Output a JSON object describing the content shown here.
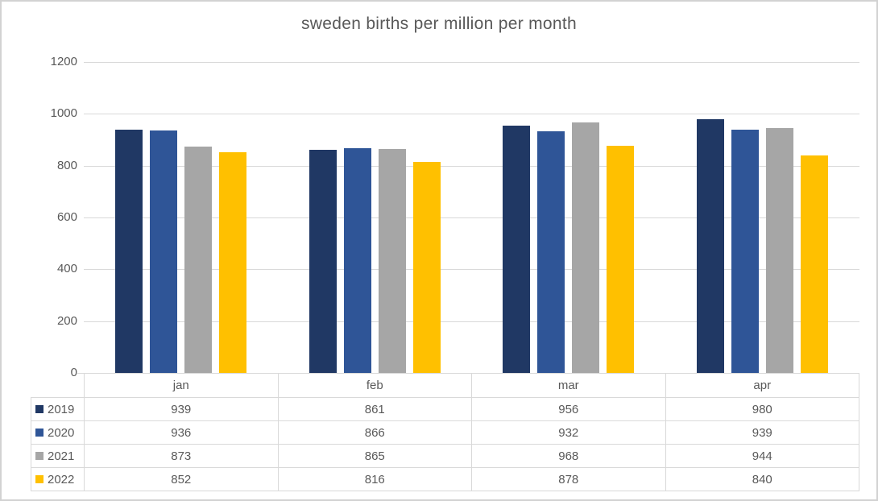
{
  "window": {
    "background": "#ffffff",
    "border_color": "#d2d2d2"
  },
  "chart_data": {
    "type": "bar",
    "title": "sweden births per million per month",
    "categories": [
      "jan",
      "feb",
      "mar",
      "apr"
    ],
    "series": [
      {
        "name": "2019",
        "color": "#203864",
        "values": [
          939,
          861,
          956,
          980
        ]
      },
      {
        "name": "2020",
        "color": "#2F5597",
        "values": [
          936,
          866,
          932,
          939
        ]
      },
      {
        "name": "2021",
        "color": "#A6A6A6",
        "values": [
          873,
          865,
          968,
          944
        ]
      },
      {
        "name": "2022",
        "color": "#FFC000",
        "values": [
          852,
          816,
          878,
          840
        ]
      }
    ],
    "xlabel": "",
    "ylabel": "",
    "ylim": [
      0,
      1200
    ],
    "yticks": [
      0,
      200,
      400,
      600,
      800,
      1000,
      1200
    ],
    "grid": true,
    "legend_position": "data-table-left",
    "colors": {
      "gridline": "#d9d9d9",
      "table_border": "#d9d9d9",
      "text": "#595959",
      "title": "#595959"
    }
  }
}
